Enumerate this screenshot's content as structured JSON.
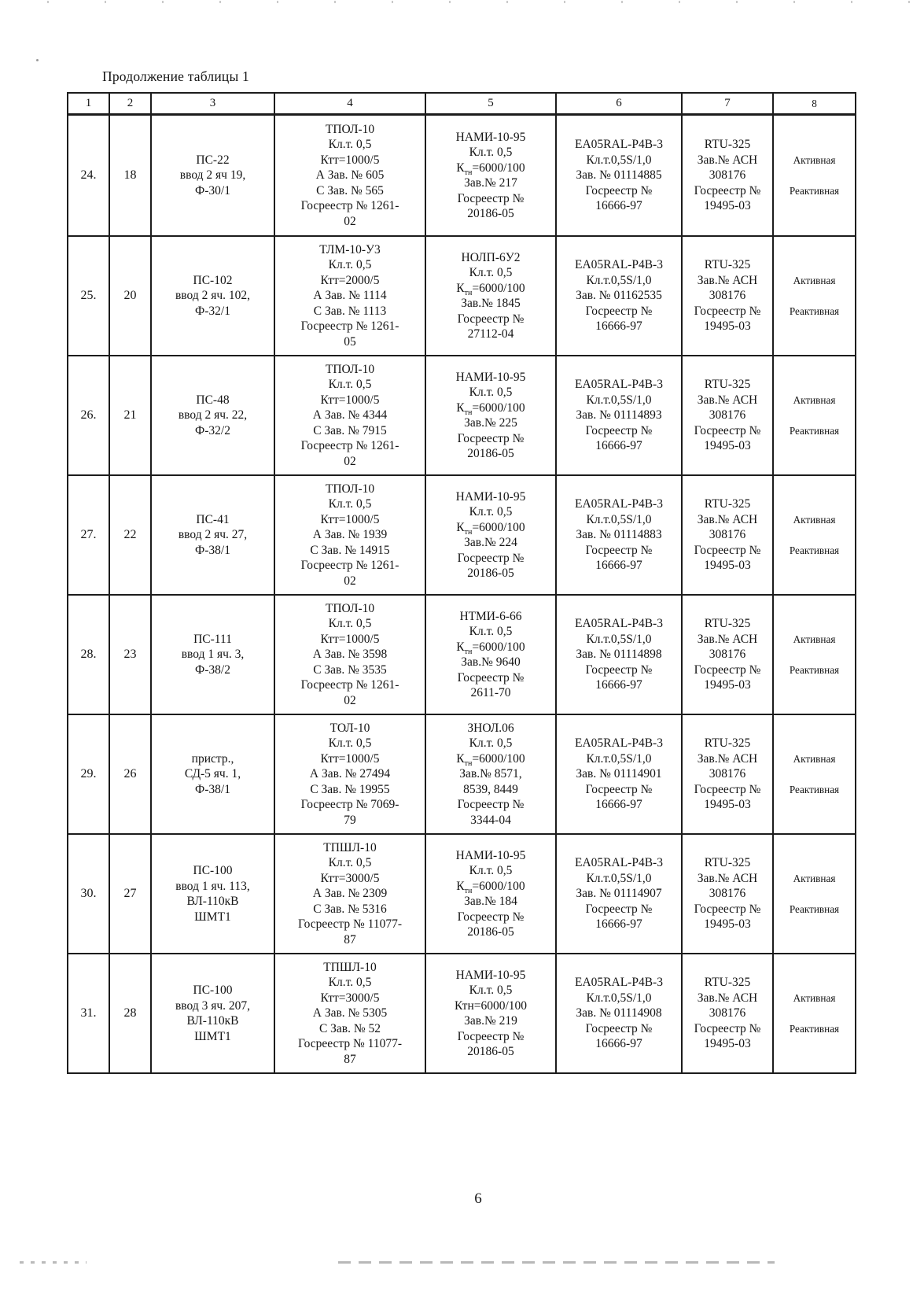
{
  "document": {
    "title": "Продолжение таблицы 1",
    "page_number": "6"
  },
  "table": {
    "column_numbers": [
      "1",
      "2",
      "3",
      "4",
      "5",
      "6",
      "7",
      "8"
    ],
    "rows": [
      {
        "cells": [
          [
            "24."
          ],
          [
            "18"
          ],
          [
            "ПС-22",
            "ввод 2 яч 19,",
            "Ф-30/1"
          ],
          [
            "ТПОЛ-10",
            "Кл.т. 0,5",
            "Ктт=1000/5",
            "А Зав. № 605",
            "С Зав. № 565",
            "Госреестр № 1261-",
            "02"
          ],
          [
            "НАМИ-10-95",
            "Кл.т. 0,5",
            "К~тн~=6000/100",
            "Зав.№ 217",
            "Госреестр №",
            "20186-05"
          ],
          [
            "EA05RAL-P4B-3",
            "Кл.т.0,5S/1,0",
            "Зав. № 01114885",
            "Госреестр №",
            "16666-97"
          ],
          [
            "RTU-325",
            "Зав.№ АСН",
            "308176",
            "Госреестр №",
            "19495-03"
          ],
          [
            "Активная",
            "Реактивная"
          ]
        ]
      },
      {
        "cells": [
          [
            "25."
          ],
          [
            "20"
          ],
          [
            "ПС-102",
            "ввод 2 яч. 102,",
            "Ф-32/1"
          ],
          [
            "ТЛМ-10-У3",
            "Кл.т. 0,5",
            "Ктт=2000/5",
            "А Зав. № 1114",
            "С Зав. № 1113",
            "Госреестр № 1261-",
            "05"
          ],
          [
            "НОЛП-6У2",
            "Кл.т. 0,5",
            "К~тн~=6000/100",
            "Зав.№ 1845",
            "Госреестр №",
            "27112-04"
          ],
          [
            "EA05RAL-P4B-3",
            "Кл.т.0,5S/1,0",
            "Зав. № 01162535",
            "Госреестр №",
            "16666-97"
          ],
          [
            "RTU-325",
            "Зав.№ АСН",
            "308176",
            "Госреестр №",
            "19495-03"
          ],
          [
            "Активная",
            "Реактивная"
          ]
        ]
      },
      {
        "cells": [
          [
            "26."
          ],
          [
            "21"
          ],
          [
            "ПС-48",
            "ввод 2 яч. 22,",
            "Ф-32/2"
          ],
          [
            "ТПОЛ-10",
            "Кл.т. 0,5",
            "Ктт=1000/5",
            "А Зав. № 4344",
            "С Зав. № 7915",
            "Госреестр № 1261-",
            "02"
          ],
          [
            "НАМИ-10-95",
            "Кл.т. 0,5",
            "К~тн~=6000/100",
            "Зав.№ 225",
            "Госреестр №",
            "20186-05"
          ],
          [
            "EA05RAL-P4B-3",
            "Кл.т.0,5S/1,0",
            "Зав. № 01114893",
            "Госреестр №",
            "16666-97"
          ],
          [
            "RTU-325",
            "Зав.№ АСН",
            "308176",
            "Госреестр №",
            "19495-03"
          ],
          [
            "Активная",
            "Реактивная"
          ]
        ]
      },
      {
        "cells": [
          [
            "27."
          ],
          [
            "22"
          ],
          [
            "ПС-41",
            "ввод 2 яч. 27,",
            "Ф-38/1"
          ],
          [
            "ТПОЛ-10",
            "Кл.т. 0,5",
            "Ктт=1000/5",
            "А Зав. № 1939",
            "С Зав. № 14915",
            "Госреестр № 1261-",
            "02"
          ],
          [
            "НАМИ-10-95",
            "Кл.т. 0,5",
            "К~тн~=6000/100",
            "Зав.№ 224",
            "Госреестр №",
            "20186-05"
          ],
          [
            "EA05RAL-P4B-3",
            "Кл.т.0,5S/1,0",
            "Зав. № 01114883",
            "Госреестр №",
            "16666-97"
          ],
          [
            "RTU-325",
            "Зав.№ АСН",
            "308176",
            "Госреестр №",
            "19495-03"
          ],
          [
            "Активная",
            "Реактивная"
          ]
        ]
      },
      {
        "cells": [
          [
            "28."
          ],
          [
            "23"
          ],
          [
            "ПС-111",
            "ввод 1 яч. 3,",
            "Ф-38/2"
          ],
          [
            "ТПОЛ-10",
            "Кл.т. 0,5",
            "Ктт=1000/5",
            "А Зав. № 3598",
            "С Зав. № 3535",
            "Госреестр № 1261-",
            "02"
          ],
          [
            "НТМИ-6-66",
            "Кл.т. 0,5",
            "К~тн~=6000/100",
            "Зав.№ 9640",
            "Госреестр №",
            "2611-70"
          ],
          [
            "EA05RAL-P4B-3",
            "Кл.т.0,5S/1,0",
            "Зав. № 01114898",
            "Госреестр №",
            "16666-97"
          ],
          [
            "RTU-325",
            "Зав.№ АСН",
            "308176",
            "Госреестр №",
            "19495-03"
          ],
          [
            "Активная",
            "Реактивная"
          ]
        ]
      },
      {
        "cells": [
          [
            "29."
          ],
          [
            "26"
          ],
          [
            "пристр.,",
            "СД-5  яч. 1,",
            "Ф-38/1"
          ],
          [
            "ТОЛ-10",
            "Кл.т. 0,5",
            "Ктт=1000/5",
            "А Зав. № 27494",
            "С Зав. № 19955",
            "Госреестр № 7069-",
            "79"
          ],
          [
            "ЗНОЛ.06",
            "Кл.т. 0,5",
            "К~тн~=6000/100",
            "Зав.№ 8571,",
            "8539, 8449",
            "Госреестр №",
            "3344-04"
          ],
          [
            "EA05RAL-P4B-3",
            "Кл.т.0,5S/1,0",
            "Зав. № 01114901",
            "Госреестр №",
            "16666-97"
          ],
          [
            "RTU-325",
            "Зав.№ АСН",
            "308176",
            "Госреестр №",
            "19495-03"
          ],
          [
            "Активная",
            "Реактивная"
          ]
        ]
      },
      {
        "cells": [
          [
            "30."
          ],
          [
            "27"
          ],
          [
            "ПС-100",
            "ввод 1 яч. 113,",
            "ВЛ-110кВ",
            "ШМТ1"
          ],
          [
            "ТПШЛ-10",
            "Кл.т. 0,5",
            "Ктт=3000/5",
            "А Зав. № 2309",
            "С Зав. № 5316",
            "Госреестр № 11077-",
            "87"
          ],
          [
            "НАМИ-10-95",
            "Кл.т. 0,5",
            "К~тн~=6000/100",
            "Зав.№ 184",
            "Госреестр №",
            "20186-05"
          ],
          [
            "EA05RAL-P4B-3",
            "Кл.т.0,5S/1,0",
            "Зав. № 01114907",
            "Госреестр №",
            "16666-97"
          ],
          [
            "RTU-325",
            "Зав.№ АСН",
            "308176",
            "Госреестр №",
            "19495-03"
          ],
          [
            "Активная",
            "Реактивная"
          ]
        ]
      },
      {
        "cells": [
          [
            "31."
          ],
          [
            "28"
          ],
          [
            "ПС-100",
            "ввод 3 яч. 207,",
            "ВЛ-110кВ",
            "ШМТ1"
          ],
          [
            "ТПШЛ-10",
            "Кл.т. 0,5",
            "Ктт=3000/5",
            "А Зав. № 5305",
            "С Зав. № 52",
            "Госреестр № 11077-",
            "87"
          ],
          [
            "НАМИ-10-95",
            "Кл.т. 0,5",
            "Ктн=6000/100",
            "Зав.№ 219",
            "Госреестр №",
            "20186-05"
          ],
          [
            "EA05RAL-P4B-3",
            "Кл.т.0,5S/1,0",
            "Зав. № 01114908",
            "Госреестр №",
            "16666-97"
          ],
          [
            "RTU-325",
            "Зав.№ АСН",
            "308176",
            "Госреестр №",
            "19495-03"
          ],
          [
            "Активная",
            "Реактивная"
          ]
        ]
      }
    ]
  }
}
